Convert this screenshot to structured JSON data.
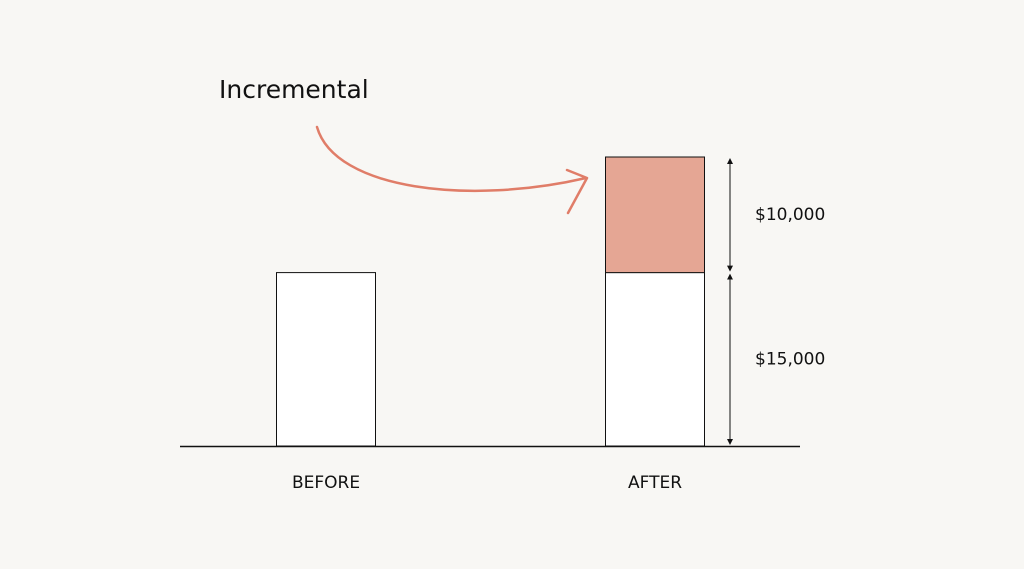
{
  "chart_data": {
    "type": "stacked-bar",
    "annotation": "Incremental",
    "categories": [
      "BEFORE",
      "AFTER"
    ],
    "series": [
      {
        "color": "#ffffff",
        "values": [
          15000,
          15000
        ],
        "value_labels": [
          null,
          "$15,000"
        ]
      },
      {
        "color": "#e5a694",
        "values": [
          null,
          10000
        ],
        "value_labels": [
          null,
          "$10,000"
        ]
      }
    ]
  }
}
